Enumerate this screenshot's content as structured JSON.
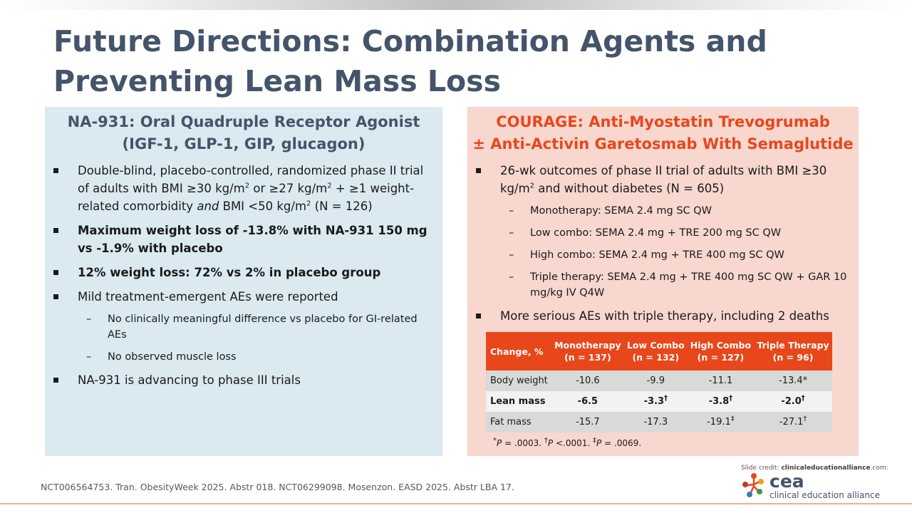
{
  "title": "Future Directions: Combination Agents and Preventing Lean Mass Loss",
  "left_panel": {
    "title_line1": "NA-931: Oral Quadruple Receptor Agonist",
    "title_line2": "(IGF-1, GLP-1, GIP, glucagon)",
    "b1_part1": "Double-blind, placebo-controlled, randomized phase II trial of adults with BMI ≥30 kg/m",
    "b1_sup1": "2",
    "b1_part2": " or ≥27 kg/m",
    "b1_sup2": "2",
    "b1_part3": " + ≥1 weight-related comorbidity ",
    "b1_italic": "and",
    "b1_part4": " BMI <50 kg/m",
    "b1_sup3": "2",
    "b1_part5": " (N = 126)",
    "b2": "Maximum weight loss of -13.8% with NA-931 150 mg vs -1.9% with placebo",
    "b3": "12% weight loss: 72% vs 2% in placebo group",
    "b4": "Mild treatment-emergent AEs were reported",
    "b4_sub1": "No clinically meaningful difference vs placebo for GI-related AEs",
    "b4_sub2": "No observed muscle loss",
    "b5": "NA-931 is advancing to phase III trials"
  },
  "right_panel": {
    "title_line1": "COURAGE: Anti-Myostatin Trevogrumab",
    "title_line2": "± Anti-Activin Garetosmab With Semaglutide",
    "b1_part1": "26-wk outcomes of phase II trial of adults with BMI ≥30 kg/m",
    "b1_sup": "2",
    "b1_part2": " and without diabetes (N = 605)",
    "sub1": "Monotherapy: SEMA 2.4 mg SC QW",
    "sub2": "Low combo: SEMA 2.4 mg + TRE 200 mg SC QW",
    "sub3": "High combo: SEMA 2.4 mg + TRE 400 mg SC QW",
    "sub4": "Triple therapy: SEMA 2.4 mg + TRE 400 mg SC QW + GAR 10 mg/kg IV Q4W",
    "b2": "More serious AEs with triple therapy, including 2 deaths"
  },
  "table": {
    "header": {
      "c0": "Change, %",
      "c1a": "Monotherapy",
      "c1b": "(n = 137)",
      "c2a": "Low Combo",
      "c2b": "(n = 132)",
      "c3a": "High Combo",
      "c3b": "(n = 127)",
      "c4a": "Triple Therapy",
      "c4b": "(n = 96)"
    },
    "rows": [
      {
        "label": "Body weight",
        "mono": "-10.6",
        "low": "-9.9",
        "low_sup": "",
        "high": "-11.1",
        "high_sup": "",
        "triple": "-13.4*",
        "triple_sup": ""
      },
      {
        "label": "Lean mass",
        "mono": "-6.5",
        "low": "-3.3",
        "low_sup": "†",
        "high": "-3.8",
        "high_sup": "†",
        "triple": "-2.0",
        "triple_sup": "†"
      },
      {
        "label": "Fat mass",
        "mono": "-15.7",
        "low": "-17.3",
        "low_sup": "",
        "high": "-19.1",
        "high_sup": "‡",
        "triple": "-27.1",
        "triple_sup": "†"
      }
    ],
    "footnote": {
      "f1_pre": "*",
      "f1_p": "P",
      "f1_val": " = .0003. ",
      "f2_pre": "†",
      "f2_p": "P",
      "f2_val": " <.0001. ",
      "f3_pre": "‡",
      "f3_p": "P",
      "f3_val": " = .0069."
    }
  },
  "footer": {
    "references": "NCT006564753. Tran. ObesityWeek 2025. Abstr 018. NCT06299098. Mosenzon. EASD 2025. Abstr LBA 17.",
    "credit_label": "Slide credit: ",
    "credit_site": "clinicaleducationalliance",
    "credit_tld": ".com:",
    "logo_text": "cea",
    "logo_sub": "clinical education alliance"
  },
  "colors": {
    "accent": "#e8471b",
    "title": "#44546a",
    "left_panel_bg": "#dbeaf0",
    "right_panel_bg": "#f8d7cf"
  }
}
